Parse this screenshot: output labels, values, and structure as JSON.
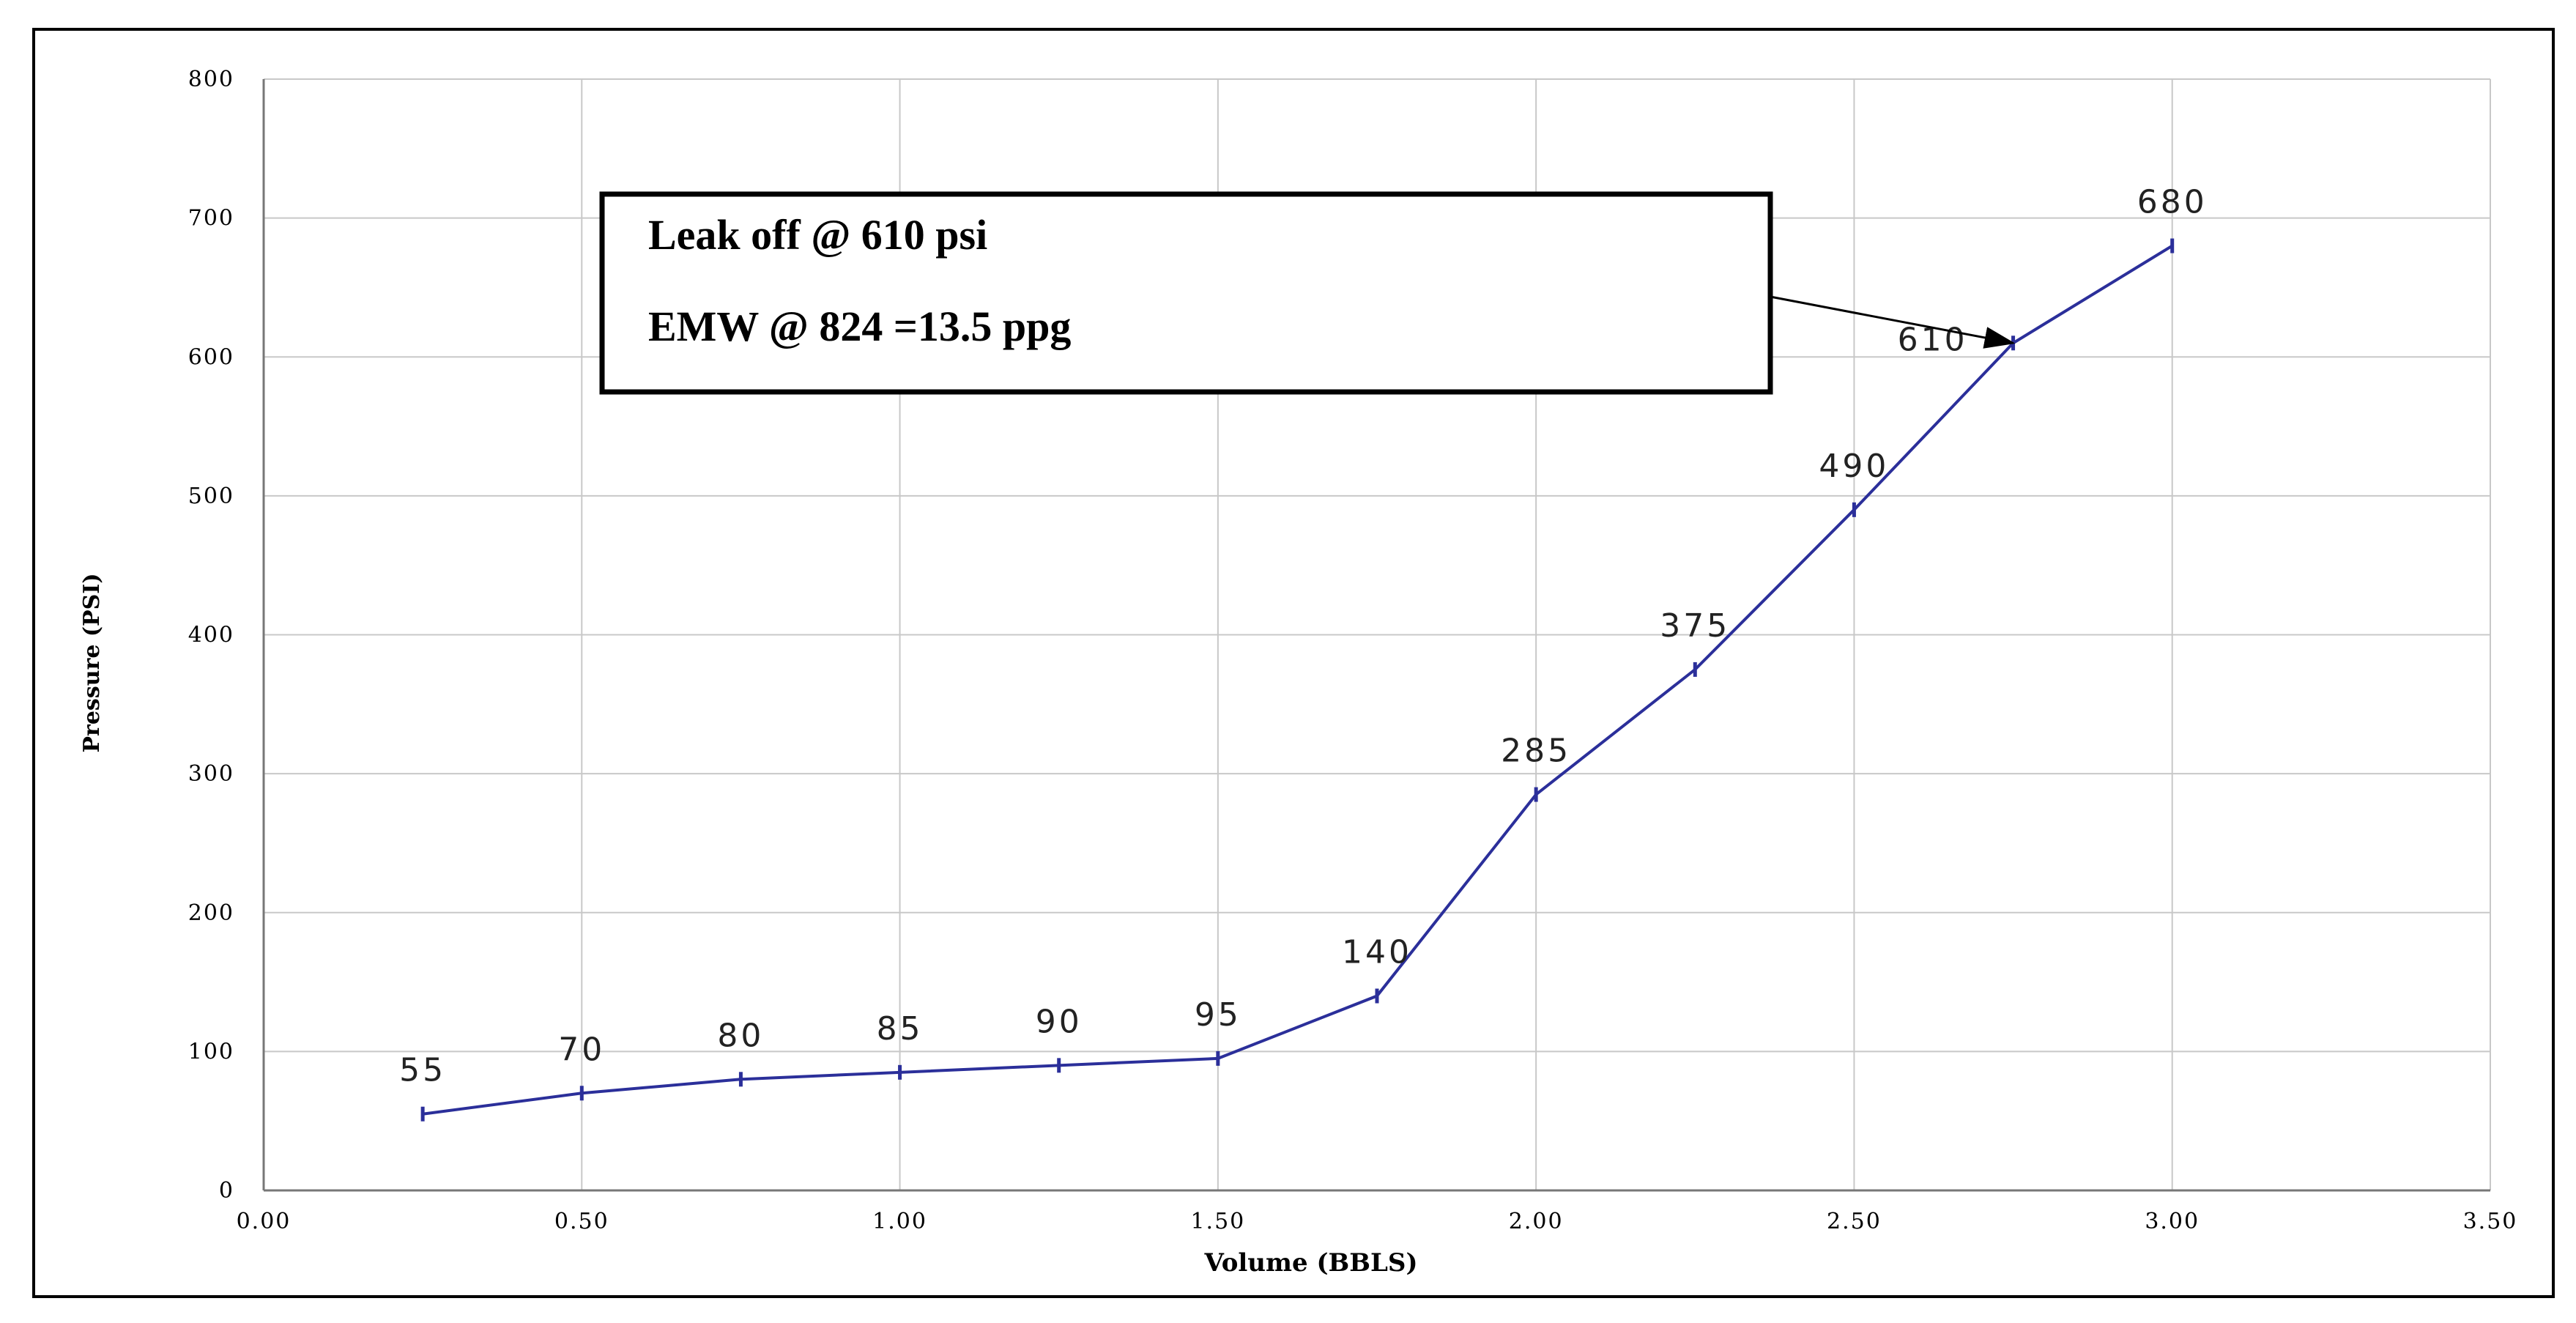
{
  "chart_data": {
    "type": "line",
    "title": "",
    "xlabel": "Volume (BBLS)",
    "ylabel": "Pressure (PSI)",
    "xlim": [
      0,
      3.5
    ],
    "ylim": [
      0,
      800
    ],
    "x_ticks": [
      "0.00",
      "0.50",
      "1.00",
      "1.50",
      "2.00",
      "2.50",
      "3.00",
      "3.50"
    ],
    "y_ticks": [
      "0",
      "100",
      "200",
      "300",
      "400",
      "500",
      "600",
      "700",
      "800"
    ],
    "grid": true,
    "legend": "none",
    "line_color": "#2b2f9a",
    "series": [
      {
        "x": [
          0.25,
          0.5,
          0.75,
          1.0,
          1.25,
          1.5,
          1.75,
          2.0,
          2.25,
          2.5,
          2.75,
          3.0
        ],
        "values": [
          55,
          70,
          80,
          85,
          90,
          95,
          140,
          285,
          375,
          490,
          610,
          680
        ],
        "labels": [
          "55",
          "70",
          "80",
          "85",
          "90",
          "95",
          "140",
          "285",
          "375",
          "490",
          "610",
          "680"
        ]
      }
    ],
    "annotation": {
      "lines": [
        "Leak off @ 610 psi",
        "EMW @ 824 =13.5 ppg"
      ],
      "arrow_to": {
        "x": 2.75,
        "y": 610
      }
    }
  }
}
